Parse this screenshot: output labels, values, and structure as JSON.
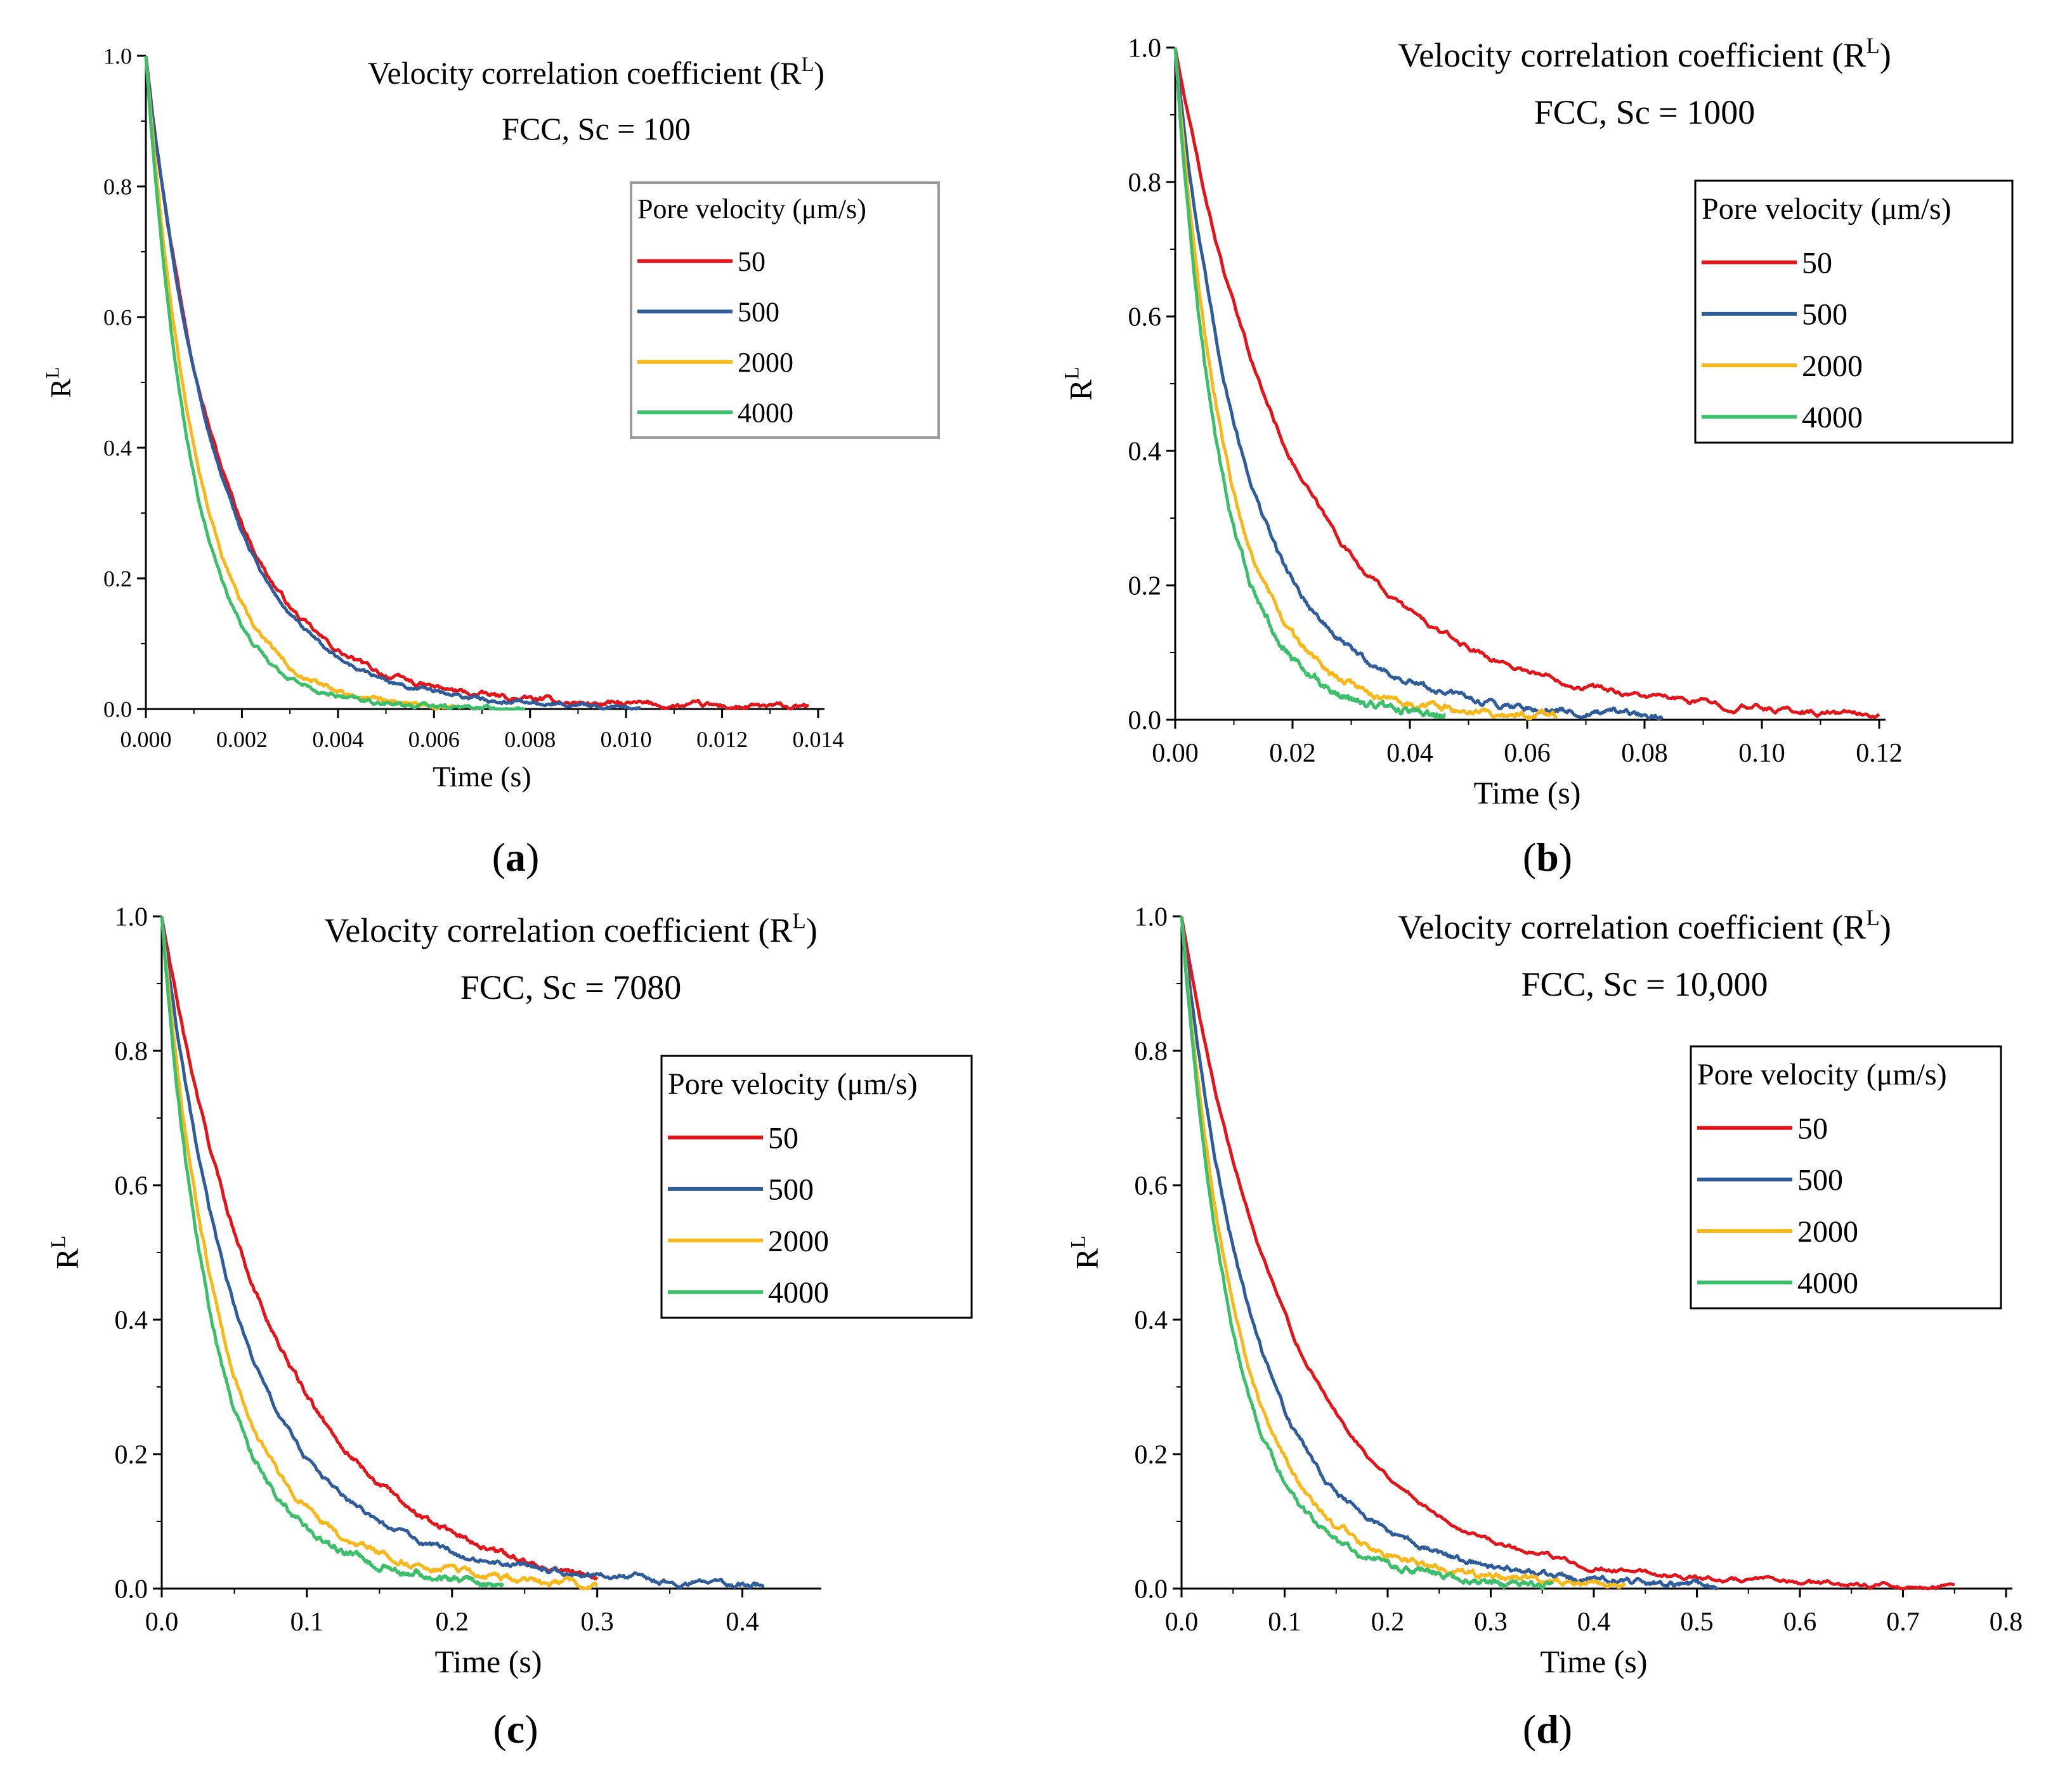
{
  "colors": {
    "s50": "#e4141b",
    "s500": "#2f5d9b",
    "s2000": "#f8b81a",
    "s4000": "#3cbf6a"
  },
  "chart_data": [
    {
      "id": "a",
      "panel_label": "a",
      "type": "line",
      "title": "Velocity correlation coefficient (R",
      "title_sup": "L",
      "title_end": ")",
      "subtitle": "FCC, Sc = 100",
      "xlabel": "Time (s)",
      "ylabel": "R",
      "ylabel_sup": "L",
      "xlim": [
        0,
        0.014
      ],
      "ylim": [
        0,
        1.0
      ],
      "xticks": [
        "0.000",
        "0.002",
        "0.004",
        "0.006",
        "0.008",
        "0.010",
        "0.012",
        "0.014"
      ],
      "yticks": [
        "0.0",
        "0.2",
        "0.4",
        "0.6",
        "0.8",
        "1.0"
      ],
      "legend_title": "Pore velocity (μm/s)",
      "legend_position": "top-right",
      "series": [
        {
          "name": "50",
          "color_key": "s50",
          "tau": 0.00165,
          "end": 0.0138,
          "c": 0.06,
          "noise": 0.006
        },
        {
          "name": "500",
          "color_key": "s500",
          "tau": 0.00165,
          "end": 0.0103,
          "c": 0.06,
          "noise": 0.004
        },
        {
          "name": "2000",
          "color_key": "s2000",
          "tau": 0.00125,
          "end": 0.0064,
          "c": 0.04,
          "noise": 0.004
        },
        {
          "name": "4000",
          "color_key": "s4000",
          "tau": 0.00105,
          "end": 0.0079,
          "c": 0.03,
          "noise": 0.004
        }
      ]
    },
    {
      "id": "b",
      "panel_label": "b",
      "type": "line",
      "title": "Velocity correlation coefficient (R",
      "title_sup": "L",
      "title_end": ")",
      "subtitle": "FCC, Sc = 1000",
      "xlabel": "Time (s)",
      "ylabel": "R",
      "ylabel_sup": "L",
      "xlim": [
        0,
        0.12
      ],
      "ylim": [
        0,
        1.0
      ],
      "xticks": [
        "0.00",
        "0.02",
        "0.04",
        "0.06",
        "0.08",
        "0.10",
        "0.12"
      ],
      "yticks": [
        "0.0",
        "0.2",
        "0.4",
        "0.6",
        "0.8",
        "1.0"
      ],
      "legend_title": "Pore velocity (μm/s)",
      "legend_position": "top-right",
      "series": [
        {
          "name": "50",
          "color_key": "s50",
          "tau": 0.021,
          "end": 0.12,
          "c": 0.15,
          "noise": 0.006
        },
        {
          "name": "500",
          "color_key": "s500",
          "tau": 0.0125,
          "end": 0.083,
          "c": 0.12,
          "noise": 0.006
        },
        {
          "name": "2000",
          "color_key": "s2000",
          "tau": 0.0095,
          "end": 0.065,
          "c": 0.1,
          "noise": 0.006
        },
        {
          "name": "4000",
          "color_key": "s4000",
          "tau": 0.0085,
          "end": 0.046,
          "c": 0.1,
          "noise": 0.006
        }
      ]
    },
    {
      "id": "c",
      "panel_label": "c",
      "type": "line",
      "title": "Velocity correlation coefficient (R",
      "title_sup": "L",
      "title_end": ")",
      "subtitle": "FCC, Sc = 7080",
      "xlabel": "Time (s)",
      "ylabel": "R",
      "ylabel_sup": "L",
      "xlim": [
        0,
        0.45
      ],
      "ylim": [
        0,
        1.0
      ],
      "xticks": [
        "0.0",
        "0.1",
        "0.2",
        "0.3",
        "0.4"
      ],
      "yticks": [
        "0.0",
        "0.2",
        "0.4",
        "0.6",
        "0.8",
        "1.0"
      ],
      "legend_title": "Pore velocity (μm/s)",
      "legend_position": "top-right",
      "series": [
        {
          "name": "50",
          "color_key": "s50",
          "tau": 0.085,
          "end": 0.3,
          "c": 0.2,
          "noise": 0.005
        },
        {
          "name": "500",
          "color_key": "s500",
          "tau": 0.055,
          "end": 0.415,
          "c": 0.16,
          "noise": 0.006
        },
        {
          "name": "2000",
          "color_key": "s2000",
          "tau": 0.042,
          "end": 0.3,
          "c": 0.15,
          "noise": 0.006
        },
        {
          "name": "4000",
          "color_key": "s4000",
          "tau": 0.037,
          "end": 0.235,
          "c": 0.15,
          "noise": 0.006
        }
      ]
    },
    {
      "id": "d",
      "panel_label": "d",
      "type": "line",
      "title": "Velocity correlation coefficient (R",
      "title_sup": "L",
      "title_end": ")",
      "subtitle": "FCC, Sc = 10,000",
      "xlabel": "Time (s)",
      "ylabel": "R",
      "ylabel_sup": "L",
      "xlim": [
        0,
        0.8
      ],
      "ylim": [
        0,
        1.0
      ],
      "xticks": [
        "0.0",
        "0.1",
        "0.2",
        "0.3",
        "0.4",
        "0.5",
        "0.6",
        "0.7",
        "0.8"
      ],
      "yticks": [
        "0.0",
        "0.2",
        "0.4",
        "0.6",
        "0.8",
        "1.0"
      ],
      "legend_title": "Pore velocity (μm/s)",
      "legend_position": "top-right",
      "series": [
        {
          "name": "50",
          "color_key": "s50",
          "tau": 0.12,
          "end": 0.75,
          "c": 0.06,
          "noise": 0.005
        },
        {
          "name": "500",
          "color_key": "s500",
          "tau": 0.075,
          "end": 0.52,
          "c": 0.12,
          "noise": 0.006
        },
        {
          "name": "2000",
          "color_key": "s2000",
          "tau": 0.058,
          "end": 0.43,
          "c": 0.12,
          "noise": 0.006
        },
        {
          "name": "4000",
          "color_key": "s4000",
          "tau": 0.052,
          "end": 0.36,
          "c": 0.12,
          "noise": 0.006
        }
      ]
    }
  ]
}
